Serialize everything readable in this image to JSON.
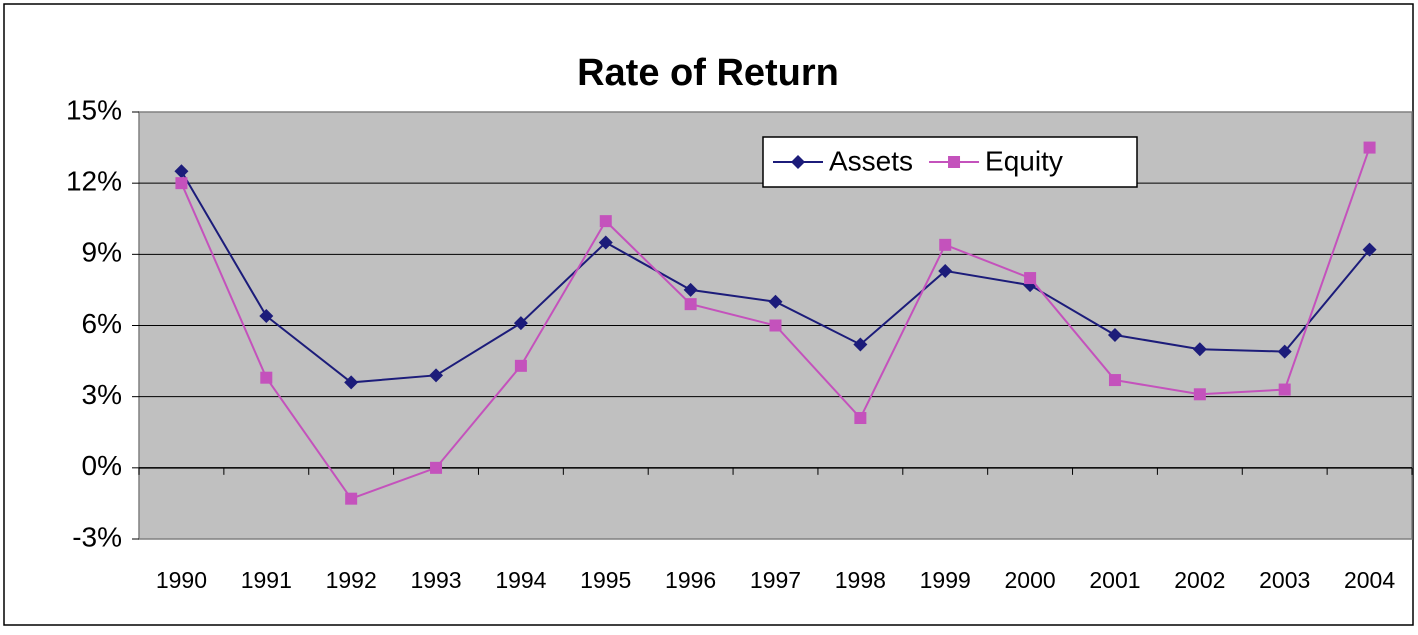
{
  "chart_data": {
    "type": "line",
    "title": "Rate of Return",
    "categories": [
      "1990",
      "1991",
      "1992",
      "1993",
      "1994",
      "1995",
      "1996",
      "1997",
      "1998",
      "1999",
      "2000",
      "2001",
      "2002",
      "2003",
      "2004"
    ],
    "series": [
      {
        "name": "Assets",
        "color": "#1c1c7a",
        "marker": "diamond",
        "values": [
          12.5,
          6.4,
          3.6,
          3.9,
          6.1,
          9.5,
          7.5,
          7.0,
          5.2,
          8.3,
          7.7,
          5.6,
          5.0,
          4.9,
          9.2
        ]
      },
      {
        "name": "Equity",
        "color": "#c452bc",
        "marker": "square",
        "values": [
          12.0,
          3.8,
          -1.3,
          0,
          4.3,
          10.4,
          6.9,
          6.0,
          2.1,
          9.4,
          8.0,
          3.7,
          3.1,
          3.3,
          13.5
        ]
      }
    ],
    "ylim": [
      -3,
      15
    ],
    "yticks": [
      {
        "value": -3,
        "label": "-3%"
      },
      {
        "value": 0,
        "label": "0%"
      },
      {
        "value": 3,
        "label": "3%"
      },
      {
        "value": 6,
        "label": "6%"
      },
      {
        "value": 9,
        "label": "9%"
      },
      {
        "value": 12,
        "label": "12%"
      },
      {
        "value": 15,
        "label": "15%"
      }
    ],
    "grid": true,
    "legend": "top-right"
  }
}
